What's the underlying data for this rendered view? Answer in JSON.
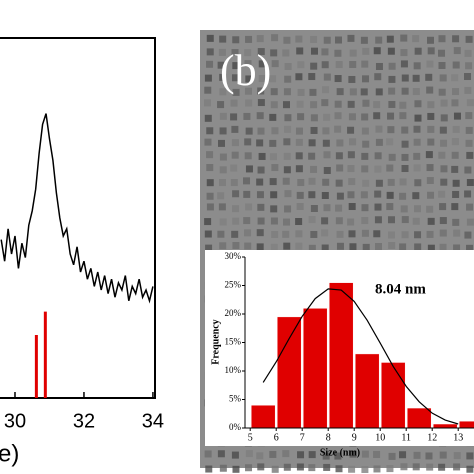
{
  "figure_labels": {
    "b": "(b)"
  },
  "chart_data": [
    {
      "type": "line",
      "x_label": "e)",
      "x": [
        29.6,
        29.7,
        29.8,
        29.9,
        30.0,
        30.1,
        30.2,
        30.3,
        30.4,
        30.5,
        30.6,
        30.7,
        30.8,
        30.9,
        31.0,
        31.1,
        31.2,
        31.3,
        31.4,
        31.5,
        31.6,
        31.7,
        31.8,
        31.9,
        32.0,
        32.1,
        32.2,
        32.3,
        32.4,
        32.5,
        32.6,
        32.7,
        32.8,
        32.9,
        33.0,
        33.1,
        33.2,
        33.3,
        33.4,
        33.5,
        33.6,
        33.7,
        33.8,
        33.9,
        34.0
      ],
      "values": [
        44,
        38,
        47,
        40,
        45,
        36,
        43,
        39,
        48,
        52,
        58,
        68,
        76,
        79,
        72,
        66,
        57,
        50,
        45,
        47,
        40,
        37,
        42,
        35,
        38,
        33,
        36,
        31,
        35,
        30,
        34,
        29,
        33,
        28,
        32,
        30,
        34,
        27,
        31,
        29,
        33,
        28,
        30,
        27,
        31
      ],
      "color": "#000000",
      "reference_x": [
        30.62,
        30.88
      ],
      "reference_values": [
        17.5,
        24
      ],
      "reference_color": "#e00000",
      "xlim": [
        29.57,
        34.06
      ],
      "xticks": [
        30,
        32,
        34
      ],
      "ylim": [
        0,
        100
      ]
    },
    {
      "type": "histogram",
      "annotation": "8.04 nm",
      "x_label": "Size (nm)",
      "y_label": "Frequency",
      "bins": [
        5,
        6,
        7,
        8,
        9,
        10,
        11,
        12,
        13,
        14
      ],
      "values": [
        4,
        19.5,
        21,
        25.5,
        13,
        11.5,
        3.5,
        0.7,
        1.2
      ],
      "color": "#e00000",
      "fit_x": [
        5.5,
        6,
        6.5,
        7,
        7.5,
        8,
        8.5,
        9,
        9.5,
        10,
        10.5,
        11,
        11.5,
        12,
        12.5,
        13
      ],
      "fit_values": [
        8.0,
        11.6,
        15.7,
        19.6,
        22.7,
        24.4,
        24.2,
        22.2,
        18.9,
        14.9,
        10.8,
        7.3,
        4.6,
        2.6,
        1.4,
        0.7
      ],
      "fit_color": "#000000",
      "xlim": [
        4.8,
        13.62
      ],
      "xticks": [
        5,
        6,
        7,
        8,
        9,
        10,
        11,
        12,
        13
      ],
      "ylim": [
        0,
        30
      ],
      "yticks": [
        {
          "value": 0,
          "label": "0%"
        },
        {
          "value": 5,
          "label": "5%"
        },
        {
          "value": 10,
          "label": "10%"
        },
        {
          "value": 15,
          "label": "15%"
        },
        {
          "value": 20,
          "label": "20%"
        },
        {
          "value": 25,
          "label": "25%"
        },
        {
          "value": 30,
          "label": "30%"
        }
      ]
    }
  ]
}
